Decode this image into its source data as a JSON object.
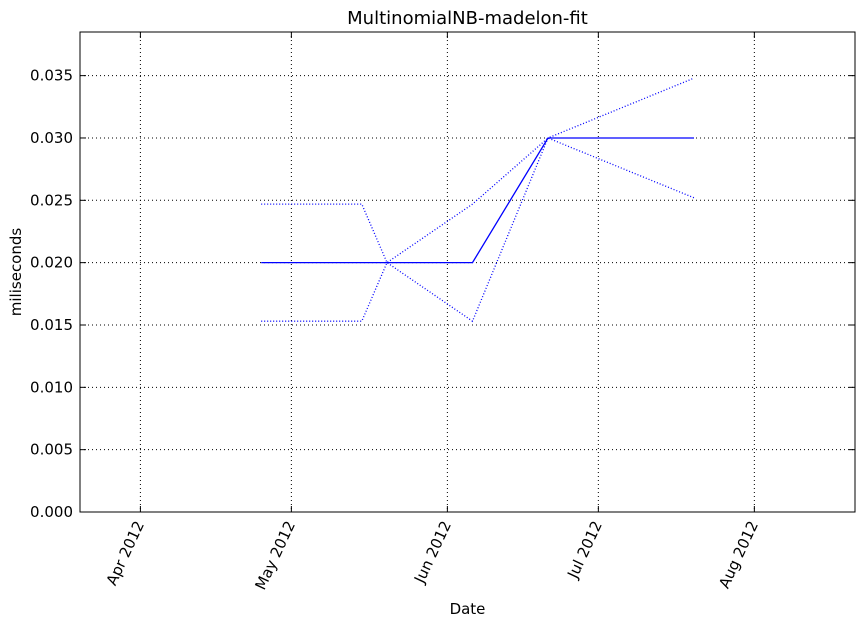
{
  "chart_data": {
    "type": "line",
    "title": "MultinomialNB-madelon-fit",
    "xlabel": "Date",
    "ylabel": "miliseconds",
    "x_ticks": [
      "2012-04-01",
      "2012-05-01",
      "2012-06-01",
      "2012-07-01",
      "2012-08-01"
    ],
    "x_tick_labels": [
      "Apr 2012",
      "May 2012",
      "Jun 2012",
      "Jul 2012",
      "Aug 2012"
    ],
    "xlim": [
      "2012-03-20",
      "2012-08-21"
    ],
    "ylim": [
      0,
      0.0385
    ],
    "y_ticks": [
      0.0,
      0.005,
      0.01,
      0.015,
      0.02,
      0.025,
      0.03,
      0.035
    ],
    "y_tick_labels": [
      "0.000",
      "0.005",
      "0.010",
      "0.015",
      "0.020",
      "0.025",
      "0.030",
      "0.035"
    ],
    "grid": true,
    "legend": "none",
    "colors": {
      "series": "#0000ff",
      "grid": "#000000",
      "axes": "#000000"
    },
    "x": [
      "2012-04-25",
      "2012-05-15",
      "2012-05-20",
      "2012-06-06",
      "2012-06-21",
      "2012-07-20"
    ],
    "series": [
      {
        "style": "solid",
        "values": [
          0.02,
          0.02,
          0.02,
          0.02,
          0.03,
          0.03
        ]
      },
      {
        "style": "dotted",
        "values": [
          0.0247,
          0.0247,
          0.02,
          0.0153,
          0.03,
          0.0348
        ]
      },
      {
        "style": "dotted",
        "values": [
          0.0153,
          0.0153,
          0.02,
          0.0247,
          0.03,
          0.0252
        ]
      }
    ]
  }
}
